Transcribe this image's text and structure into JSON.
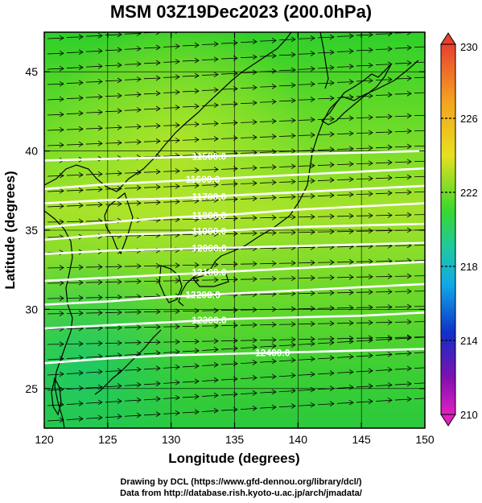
{
  "title": "MSM 03Z19Dec2023 (200.0hPa)",
  "credits": {
    "line1": "Drawing by DCL (https://www.gfd-dennou.org/library/dcl/)",
    "line2": "Data from http://database.rish.kyoto-u.ac.jp/arch/jmadata/"
  },
  "chart_data": {
    "type": "map",
    "xlabel": "Longitude (degrees)",
    "ylabel": "Latitude  (degrees)",
    "xlim": [
      120,
      150
    ],
    "ylim": [
      22.5,
      47.5
    ],
    "xticks": [
      120,
      125,
      130,
      135,
      140,
      145,
      150
    ],
    "yticks": [
      25,
      30,
      35,
      40,
      45
    ],
    "grid": true,
    "field": "temperature shading with geopotential height contours and wind vectors",
    "colorbar": {
      "min": 210,
      "max": 230,
      "labels": [
        230,
        226,
        222,
        218,
        214,
        210
      ]
    },
    "contours": [
      {
        "value": 11500.0,
        "label": "11500.0",
        "label_lon": 133.0,
        "lats": [
          39.4,
          39.5,
          39.6,
          39.7,
          39.8,
          39.9,
          40.0
        ]
      },
      {
        "value": 11600.0,
        "label": "11600.0",
        "label_lon": 132.5,
        "lats": [
          37.6,
          37.9,
          38.1,
          38.3,
          38.5,
          38.7,
          38.9
        ]
      },
      {
        "value": 11700.0,
        "label": "11700.0",
        "label_lon": 133.0,
        "lats": [
          36.7,
          36.9,
          37.0,
          37.2,
          37.4,
          37.6,
          37.8
        ]
      },
      {
        "value": 11800.0,
        "label": "11800.0",
        "label_lon": 133.0,
        "lats": [
          35.2,
          35.5,
          35.8,
          36.0,
          36.3,
          36.5,
          36.7
        ]
      },
      {
        "value": 11900.0,
        "label": "11900.0",
        "label_lon": 133.0,
        "lats": [
          34.4,
          34.7,
          34.8,
          35.0,
          35.2,
          35.3,
          35.4
        ]
      },
      {
        "value": 12000.0,
        "label": "12000.0",
        "label_lon": 133.0,
        "lats": [
          33.5,
          33.7,
          33.8,
          33.9,
          34.0,
          34.1,
          34.2
        ]
      },
      {
        "value": 12100.0,
        "label": "12100.0",
        "label_lon": 133.0,
        "lats": [
          31.8,
          32.0,
          32.2,
          32.4,
          32.6,
          32.8,
          33.0
        ]
      },
      {
        "value": 12200.0,
        "label": "12200.0",
        "label_lon": 132.5,
        "lats": [
          30.3,
          30.5,
          30.8,
          31.0,
          31.2,
          31.4,
          31.6
        ]
      },
      {
        "value": 12300.0,
        "label": "12300.0",
        "label_lon": 133.0,
        "lats": [
          28.8,
          29.0,
          29.2,
          29.4,
          29.5,
          29.6,
          29.8
        ]
      },
      {
        "value": 12400.0,
        "label": "12400.0",
        "label_lon": 138.0,
        "lats": [
          26.6,
          26.9,
          27.1,
          27.2,
          27.3,
          27.4,
          27.5
        ]
      }
    ]
  }
}
